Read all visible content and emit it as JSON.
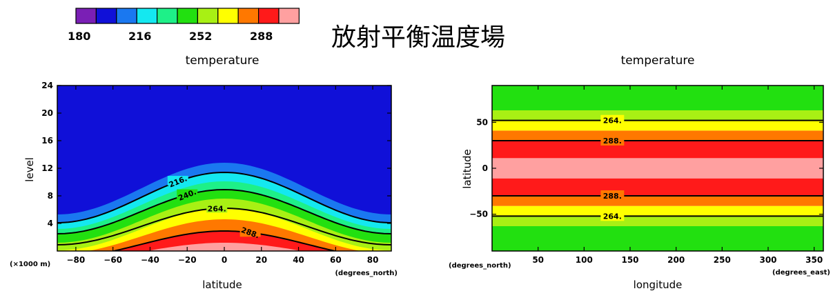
{
  "heading": "放射平衡温度場",
  "colors": {
    "levels": [
      "#7a1fb5",
      "#1010d8",
      "#1a78f0",
      "#14e8f0",
      "#1ef088",
      "#22e010",
      "#a8f014",
      "#ffff00",
      "#ff7800",
      "#ff1a1a",
      "#ffa0a0"
    ]
  },
  "colorbar": {
    "ticks": [
      "180",
      "216",
      "252",
      "288"
    ]
  },
  "chart_data": [
    {
      "type": "contour",
      "title": "temperature",
      "xlabel": "latitude",
      "ylabel": "level",
      "x_units": "(degrees_north)",
      "y_units": "(×1000 m)",
      "xlim": [
        -90,
        90
      ],
      "ylim": [
        0,
        24
      ],
      "xticks": [
        "-80",
        "-60",
        "-40",
        "-20",
        "0",
        "20",
        "40",
        "60",
        "80"
      ],
      "yticks": [
        "4",
        "8",
        "12",
        "16",
        "20",
        "24"
      ],
      "contour_labels": [
        "216.",
        "240.",
        "264.",
        "288."
      ],
      "bands": [
        {
          "color_index": 10,
          "top_equator": 1.2,
          "top_edge": -1.5
        },
        {
          "color_index": 9,
          "top_equator": 2.9,
          "top_edge": -1.0
        },
        {
          "color_index": 8,
          "top_equator": 4.6,
          "top_edge": -0.4
        },
        {
          "color_index": 7,
          "top_equator": 6.2,
          "top_edge": 0.1
        },
        {
          "color_index": 6,
          "top_equator": 7.6,
          "top_edge": 1.2
        },
        {
          "color_index": 5,
          "top_equator": 8.9,
          "top_edge": 2.5
        },
        {
          "color_index": 4,
          "top_equator": 10.1,
          "top_edge": 3.2
        },
        {
          "color_index": 3,
          "top_equator": 11.4,
          "top_edge": 4.1
        },
        {
          "color_index": 2,
          "top_equator": 12.8,
          "top_edge": 5.3
        }
      ],
      "contours": [
        {
          "value": "216.",
          "equator": 11.4,
          "edge": 4.1
        },
        {
          "value": "240.",
          "equator": 8.9,
          "edge": 2.5
        },
        {
          "value": "264.",
          "equator": 6.2,
          "edge": 0.9
        },
        {
          "value": "288.",
          "equator": 2.9,
          "edge": -1.0
        }
      ],
      "background_color_index": 1
    },
    {
      "type": "contour",
      "title": "temperature",
      "xlabel": "longitude",
      "ylabel": "latitude",
      "x_units": "(degrees_east)",
      "y_units": "(degrees_north)",
      "xlim": [
        0,
        360
      ],
      "ylim": [
        -90,
        90
      ],
      "xticks": [
        "50",
        "100",
        "150",
        "200",
        "250",
        "300",
        "350"
      ],
      "yticks": [
        "50",
        "0",
        "−50"
      ],
      "contour_labels": [
        "264.",
        "288.",
        "288.",
        "264."
      ],
      "bands": [
        {
          "lat_from": -90,
          "lat_to": -63,
          "color_index": 5
        },
        {
          "lat_from": -63,
          "lat_to": -52,
          "color_index": 6
        },
        {
          "lat_from": -52,
          "lat_to": -41,
          "color_index": 7
        },
        {
          "lat_from": -41,
          "lat_to": -30,
          "color_index": 8
        },
        {
          "lat_from": -30,
          "lat_to": -11,
          "color_index": 9
        },
        {
          "lat_from": -11,
          "lat_to": 11,
          "color_index": 10
        },
        {
          "lat_from": 11,
          "lat_to": 30,
          "color_index": 9
        },
        {
          "lat_from": 30,
          "lat_to": 41,
          "color_index": 8
        },
        {
          "lat_from": 41,
          "lat_to": 52,
          "color_index": 7
        },
        {
          "lat_from": 52,
          "lat_to": 63,
          "color_index": 6
        },
        {
          "lat_from": 63,
          "lat_to": 90,
          "color_index": 5
        }
      ],
      "contours": [
        {
          "value": "264.",
          "lat": 52
        },
        {
          "value": "288.",
          "lat": 30
        },
        {
          "value": "288.",
          "lat": -30
        },
        {
          "value": "264.",
          "lat": -52
        }
      ]
    }
  ]
}
